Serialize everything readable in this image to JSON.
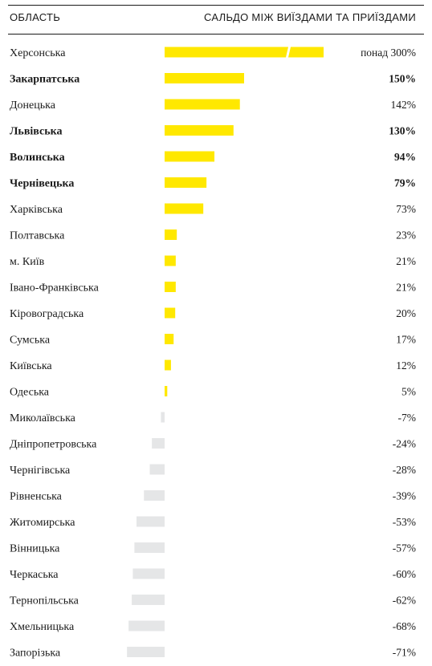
{
  "header": {
    "region_label": "ОБЛАСТЬ",
    "balance_label": "САЛЬДО МІЖ ВИЇЗДАМИ ТА ПРИЇЗДАМИ"
  },
  "colors": {
    "positive": "#FFE800",
    "negative": "#E5E6E7",
    "text": "#1a1a1a"
  },
  "chart_data": {
    "type": "bar",
    "orientation": "horizontal",
    "xlabel": "САЛЬДО МІЖ ВИЇЗДАМИ ТА ПРИЇЗДАМИ",
    "ylabel": "ОБЛАСТЬ",
    "unit": "%",
    "grid": false,
    "rows": [
      {
        "region": "Херсонська",
        "value": 300,
        "label": "понад 300%",
        "bold": false,
        "truncated": true
      },
      {
        "region": "Закарпатська",
        "value": 150,
        "label": "150%",
        "bold": true
      },
      {
        "region": "Донецька",
        "value": 142,
        "label": "142%",
        "bold": false
      },
      {
        "region": "Львівська",
        "value": 130,
        "label": "130%",
        "bold": true
      },
      {
        "region": "Волинська",
        "value": 94,
        "label": "94%",
        "bold": true
      },
      {
        "region": "Чернівецька",
        "value": 79,
        "label": "79%",
        "bold": true
      },
      {
        "region": "Харківська",
        "value": 73,
        "label": "73%",
        "bold": false
      },
      {
        "region": "Полтавська",
        "value": 23,
        "label": "23%",
        "bold": false
      },
      {
        "region": "м. Київ",
        "value": 21,
        "label": "21%",
        "bold": false
      },
      {
        "region": "Івано-Франківська",
        "value": 21,
        "label": "21%",
        "bold": false
      },
      {
        "region": "Кіровоградська",
        "value": 20,
        "label": "20%",
        "bold": false
      },
      {
        "region": "Сумська",
        "value": 17,
        "label": "17%",
        "bold": false
      },
      {
        "region": "Київська",
        "value": 12,
        "label": "12%",
        "bold": false
      },
      {
        "region": "Одеська",
        "value": 5,
        "label": "5%",
        "bold": false
      },
      {
        "region": "Миколаївська",
        "value": -7,
        "label": "-7%",
        "bold": false
      },
      {
        "region": "Дніпропетровська",
        "value": -24,
        "label": "-24%",
        "bold": false
      },
      {
        "region": "Чернігівська",
        "value": -28,
        "label": "-28%",
        "bold": false
      },
      {
        "region": "Рівненська",
        "value": -39,
        "label": "-39%",
        "bold": false
      },
      {
        "region": "Житомирська",
        "value": -53,
        "label": "-53%",
        "bold": false
      },
      {
        "region": "Вінницька",
        "value": -57,
        "label": "-57%",
        "bold": false
      },
      {
        "region": "Черкаська",
        "value": -60,
        "label": "-60%",
        "bold": false
      },
      {
        "region": "Тернопільська",
        "value": -62,
        "label": "-62%",
        "bold": false
      },
      {
        "region": "Хмельницька",
        "value": -68,
        "label": "-68%",
        "bold": false
      },
      {
        "region": "Запорізька",
        "value": -71,
        "label": "-71%",
        "bold": false
      }
    ]
  }
}
